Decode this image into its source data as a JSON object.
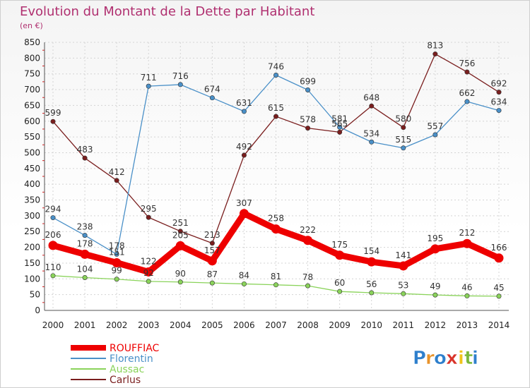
{
  "chart_data": {
    "type": "line",
    "title": "Evolution du Montant de la Dette par Habitant",
    "subtitle": "(en €)",
    "xlabel": "",
    "ylabel": "",
    "ylim": [
      0,
      850
    ],
    "yticks": [
      0,
      50,
      100,
      150,
      200,
      250,
      300,
      350,
      400,
      450,
      500,
      550,
      600,
      650,
      700,
      750,
      800,
      850
    ],
    "categories": [
      "2000",
      "2001",
      "2002",
      "2003",
      "2004",
      "2005",
      "2006",
      "2007",
      "2008",
      "2009",
      "2010",
      "2011",
      "2012",
      "2013",
      "2014"
    ],
    "grid": true,
    "legend_position": "bottom-left",
    "series": [
      {
        "name": "Carlus",
        "color": "#7a1e1e",
        "values": [
          599,
          483,
          412,
          295,
          251,
          213,
          492,
          615,
          578,
          565,
          648,
          580,
          813,
          756,
          692
        ]
      },
      {
        "name": "Florentin",
        "color": "#4a90c8",
        "values": [
          294,
          238,
          178,
          711,
          716,
          674,
          631,
          746,
          699,
          581,
          534,
          515,
          557,
          662,
          634
        ]
      },
      {
        "name": "Aussac",
        "color": "#8ad35a",
        "values": [
          110,
          104,
          99,
          92,
          90,
          87,
          84,
          81,
          78,
          60,
          56,
          53,
          49,
          46,
          45
        ]
      },
      {
        "name": "ROUFFIAC",
        "color": "#ee0000",
        "values": [
          206,
          178,
          151,
          122,
          205,
          157,
          307,
          258,
          222,
          175,
          154,
          141,
          195,
          212,
          166
        ]
      }
    ],
    "legend": [
      "ROUFFIAC",
      "Florentin",
      "Aussac",
      "Carlus"
    ]
  },
  "branding": {
    "logo_text": "Proxiti",
    "letters": [
      "P",
      "r",
      "o",
      "x",
      "i",
      "t",
      "i"
    ],
    "letter_colors": [
      "#2e7fcc",
      "#e8932a",
      "#2e7fcc",
      "#d9342b",
      "#f0c419",
      "#7ab83c",
      "#2e7fcc"
    ]
  }
}
